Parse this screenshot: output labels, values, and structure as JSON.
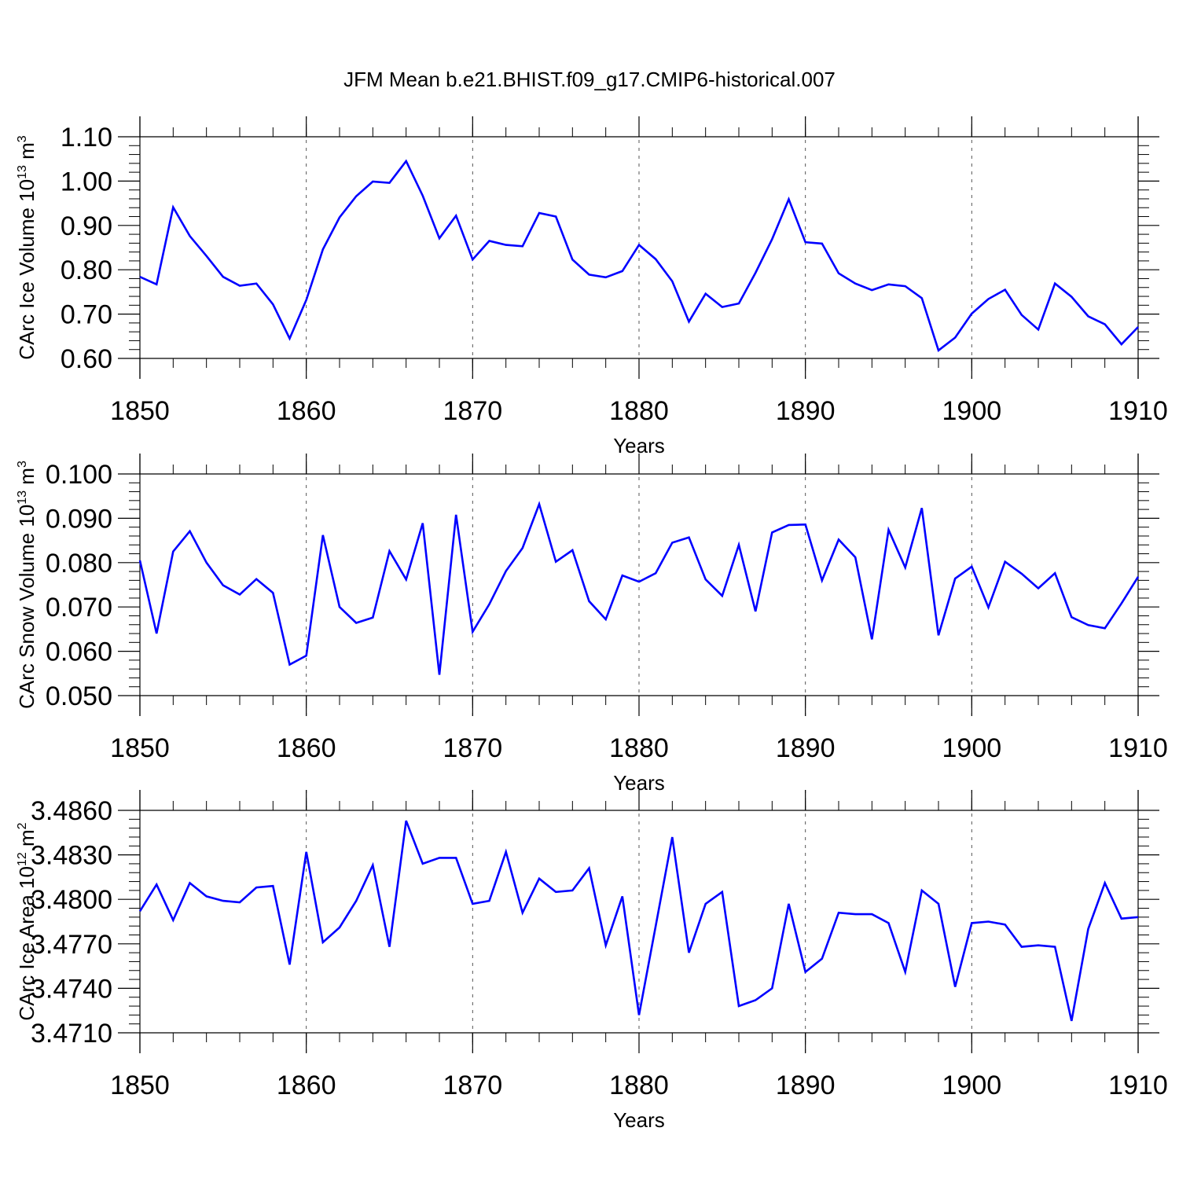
{
  "title": "JFM Mean b.e21.BHIST.f09_g17.CMIP6-historical.007",
  "colors": {
    "series": "#0000ff",
    "axis": "#000000",
    "grid": "#555555"
  },
  "chart_data": [
    {
      "type": "line",
      "title": "",
      "xlabel": "Years",
      "ylabel": "CArc Ice Volume 10",
      "ylabel_sup": "13",
      "ylabel_unit": " m",
      "ylabel_unit_sup": "3",
      "xlim": [
        1850,
        1910
      ],
      "ylim": [
        0.6,
        1.1
      ],
      "xticks": [
        "1850",
        "1860",
        "1870",
        "1880",
        "1890",
        "1900",
        "1910"
      ],
      "yticks": [
        "0.60",
        "0.70",
        "0.80",
        "0.90",
        "1.00",
        "1.10"
      ],
      "ytick_values": [
        0.6,
        0.7,
        0.8,
        0.9,
        1.0,
        1.1
      ],
      "grid": "vertical dashed at decades",
      "x": [
        1850,
        1851,
        1852,
        1853,
        1854,
        1855,
        1856,
        1857,
        1858,
        1859,
        1860,
        1861,
        1862,
        1863,
        1864,
        1865,
        1866,
        1867,
        1868,
        1869,
        1870,
        1871,
        1872,
        1873,
        1874,
        1875,
        1876,
        1877,
        1878,
        1879,
        1880,
        1881,
        1882,
        1883,
        1884,
        1885,
        1886,
        1887,
        1888,
        1889,
        1890,
        1891,
        1892,
        1893,
        1894,
        1895,
        1896,
        1897,
        1898,
        1899,
        1900,
        1901,
        1902,
        1903,
        1904,
        1905,
        1906,
        1907,
        1908,
        1909,
        1910
      ],
      "series": [
        {
          "values": [
            0.784,
            0.767,
            0.941,
            0.876,
            0.831,
            0.784,
            0.764,
            0.769,
            0.722,
            0.645,
            0.732,
            0.846,
            0.918,
            0.966,
            0.999,
            0.996,
            1.045,
            0.967,
            0.871,
            0.922,
            0.823,
            0.865,
            0.856,
            0.853,
            0.928,
            0.92,
            0.823,
            0.789,
            0.783,
            0.797,
            0.856,
            0.824,
            0.774,
            0.683,
            0.746,
            0.716,
            0.724,
            0.793,
            0.869,
            0.959,
            0.862,
            0.859,
            0.792,
            0.769,
            0.754,
            0.767,
            0.763,
            0.736,
            0.618,
            0.647,
            0.701,
            0.734,
            0.755,
            0.698,
            0.665,
            0.769,
            0.739,
            0.695,
            0.677,
            0.632,
            0.671
          ]
        }
      ]
    },
    {
      "type": "line",
      "title": "",
      "xlabel": "Years",
      "ylabel": "CArc Snow Volume 10",
      "ylabel_sup": "13",
      "ylabel_unit": " m",
      "ylabel_unit_sup": "3",
      "xlim": [
        1850,
        1910
      ],
      "ylim": [
        0.05,
        0.1
      ],
      "xticks": [
        "1850",
        "1860",
        "1870",
        "1880",
        "1890",
        "1900",
        "1910"
      ],
      "yticks": [
        "0.050",
        "0.060",
        "0.070",
        "0.080",
        "0.090",
        "0.100"
      ],
      "ytick_values": [
        0.05,
        0.06,
        0.07,
        0.08,
        0.09,
        0.1
      ],
      "grid": "vertical dashed at decades",
      "x": [
        1850,
        1851,
        1852,
        1853,
        1854,
        1855,
        1856,
        1857,
        1858,
        1859,
        1860,
        1861,
        1862,
        1863,
        1864,
        1865,
        1866,
        1867,
        1868,
        1869,
        1870,
        1871,
        1872,
        1873,
        1874,
        1875,
        1876,
        1877,
        1878,
        1879,
        1880,
        1881,
        1882,
        1883,
        1884,
        1885,
        1886,
        1887,
        1888,
        1889,
        1890,
        1891,
        1892,
        1893,
        1894,
        1895,
        1896,
        1897,
        1898,
        1899,
        1900,
        1901,
        1902,
        1903,
        1904,
        1905,
        1906,
        1907,
        1908,
        1909,
        1910
      ],
      "series": [
        {
          "values": [
            0.0805,
            0.064,
            0.0825,
            0.0871,
            0.08,
            0.0749,
            0.0728,
            0.0763,
            0.0732,
            0.057,
            0.059,
            0.0862,
            0.07,
            0.0664,
            0.0676,
            0.0826,
            0.0762,
            0.0889,
            0.0547,
            0.0908,
            0.0644,
            0.0706,
            0.0781,
            0.0833,
            0.0932,
            0.0802,
            0.0828,
            0.0713,
            0.0672,
            0.0771,
            0.0757,
            0.0776,
            0.0845,
            0.0857,
            0.0762,
            0.0725,
            0.084,
            0.069,
            0.0868,
            0.0885,
            0.0886,
            0.076,
            0.0852,
            0.0812,
            0.0627,
            0.0874,
            0.0789,
            0.0923,
            0.0636,
            0.0764,
            0.0791,
            0.0699,
            0.0802,
            0.0775,
            0.0742,
            0.0776,
            0.0677,
            0.0659,
            0.0652,
            0.0708,
            0.0768
          ]
        }
      ]
    },
    {
      "type": "line",
      "title": "",
      "xlabel": "Years",
      "ylabel": "CArc Ice Area 10",
      "ylabel_sup": "12",
      "ylabel_unit": " m",
      "ylabel_unit_sup": "2",
      "xlim": [
        1850,
        1910
      ],
      "ylim": [
        3.471,
        3.486
      ],
      "xticks": [
        "1850",
        "1860",
        "1870",
        "1880",
        "1890",
        "1900",
        "1910"
      ],
      "yticks": [
        "3.4710",
        "3.4740",
        "3.4770",
        "3.4800",
        "3.4830",
        "3.4860"
      ],
      "ytick_values": [
        3.471,
        3.474,
        3.477,
        3.48,
        3.483,
        3.486
      ],
      "grid": "vertical dashed at decades",
      "x": [
        1850,
        1851,
        1852,
        1853,
        1854,
        1855,
        1856,
        1857,
        1858,
        1859,
        1860,
        1861,
        1862,
        1863,
        1864,
        1865,
        1866,
        1867,
        1868,
        1869,
        1870,
        1871,
        1872,
        1873,
        1874,
        1875,
        1876,
        1877,
        1878,
        1879,
        1880,
        1881,
        1882,
        1883,
        1884,
        1885,
        1886,
        1887,
        1888,
        1889,
        1890,
        1891,
        1892,
        1893,
        1894,
        1895,
        1896,
        1897,
        1898,
        1899,
        1900,
        1901,
        1902,
        1903,
        1904,
        1905,
        1906,
        1907,
        1908,
        1909,
        1910
      ],
      "series": [
        {
          "values": [
            3.4792,
            3.481,
            3.4786,
            3.4811,
            3.4802,
            3.4799,
            3.4798,
            3.4808,
            3.4809,
            3.4756,
            3.4832,
            3.4771,
            3.4781,
            3.4799,
            3.4823,
            3.4768,
            3.4853,
            3.4824,
            3.4828,
            3.4828,
            3.4797,
            3.4799,
            3.4832,
            3.4791,
            3.4814,
            3.4805,
            3.4806,
            3.4821,
            3.4769,
            3.4802,
            3.4722,
            3.4782,
            3.4842,
            3.4764,
            3.4797,
            3.4805,
            3.4728,
            3.4732,
            3.474,
            3.4797,
            3.4751,
            3.476,
            3.4791,
            3.479,
            3.479,
            3.4784,
            3.4751,
            3.4806,
            3.4797,
            3.4741,
            3.4784,
            3.4785,
            3.4783,
            3.4768,
            3.4769,
            3.4768,
            3.4718,
            3.478,
            3.4811,
            3.4787,
            3.4788
          ]
        }
      ]
    }
  ]
}
